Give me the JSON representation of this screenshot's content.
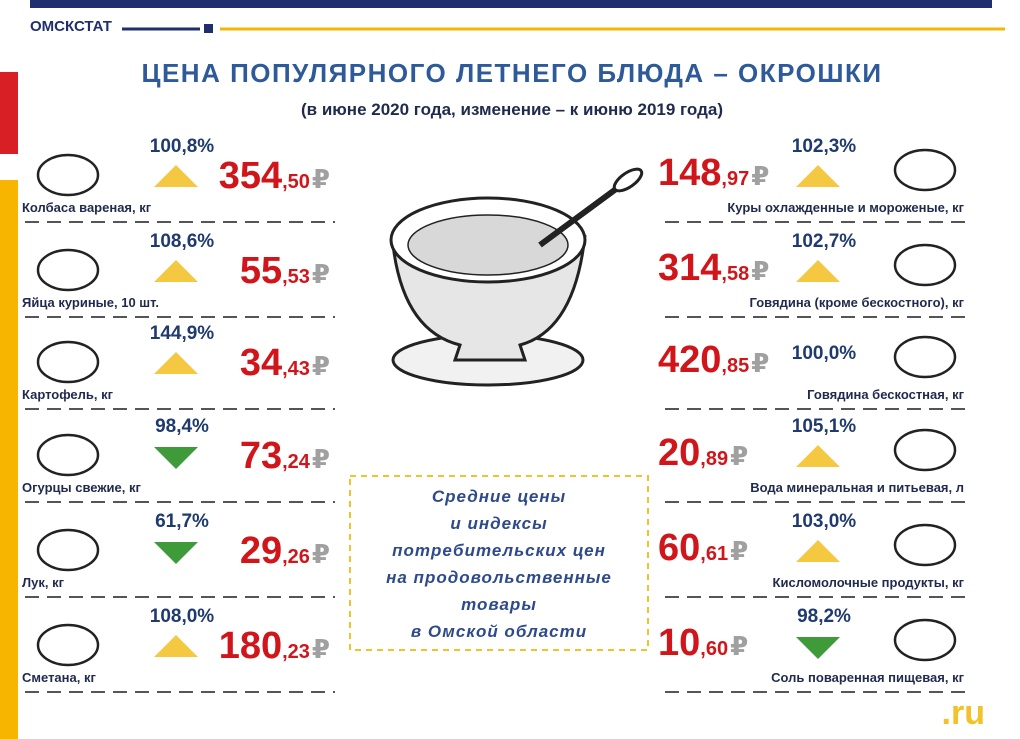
{
  "header": {
    "org": "ОМСКСТАТ",
    "title": "ЦЕНА ПОПУЛЯРНОГО ЛЕТНЕГО БЛЮДА – ОКРОШКИ",
    "subtitle": "(в июне 2020 года, изменение – к  июню 2019 года)"
  },
  "currency": "₽",
  "left_items": [
    {
      "name": "Колбаса вареная, кг",
      "index": "100,8%",
      "trend": "up",
      "price_main": "354",
      "price_fraction": ",50"
    },
    {
      "name": "Яйца куриные, 10 шт.",
      "index": "108,6%",
      "trend": "up",
      "price_main": "55",
      "price_fraction": ",53"
    },
    {
      "name": "Картофель, кг",
      "index": "144,9%",
      "trend": "up",
      "price_main": "34",
      "price_fraction": ",43"
    },
    {
      "name": "Огурцы свежие, кг",
      "index": "98,4%",
      "trend": "down",
      "price_main": "73",
      "price_fraction": ",24"
    },
    {
      "name": "Лук, кг",
      "index": "61,7%",
      "trend": "down",
      "price_main": "29",
      "price_fraction": ",26"
    },
    {
      "name": "Сметана, кг",
      "index": "108,0%",
      "trend": "up",
      "price_main": "180",
      "price_fraction": ",23"
    }
  ],
  "right_items": [
    {
      "name": "Куры охлажденные и мороженые, кг",
      "index": "102,3%",
      "trend": "up",
      "price_main": "148",
      "price_fraction": ",97"
    },
    {
      "name": "Говядина (кроме бескостного), кг",
      "index": "102,7%",
      "trend": "up",
      "price_main": "314",
      "price_fraction": ",58"
    },
    {
      "name": "Говядина бескостная, кг",
      "index": "100,0%",
      "trend": "none",
      "price_main": "420",
      "price_fraction": ",85"
    },
    {
      "name": "Вода минеральная  и питьевая, л",
      "index": "105,1%",
      "trend": "up",
      "price_main": "20",
      "price_fraction": ",89"
    },
    {
      "name": "Кисломолочные продукты, кг",
      "index": "103,0%",
      "trend": "up",
      "price_main": "60",
      "price_fraction": ",61"
    },
    {
      "name": "Соль поваренная  пищевая, кг",
      "index": "98,2%",
      "trend": "down",
      "price_main": "10",
      "price_fraction": ",60"
    }
  ],
  "note": [
    "Средние цены",
    "и индексы",
    "потребительских цен",
    "на продовольственные",
    "товары",
    "в Омской области"
  ],
  "watermark": ".ru"
}
